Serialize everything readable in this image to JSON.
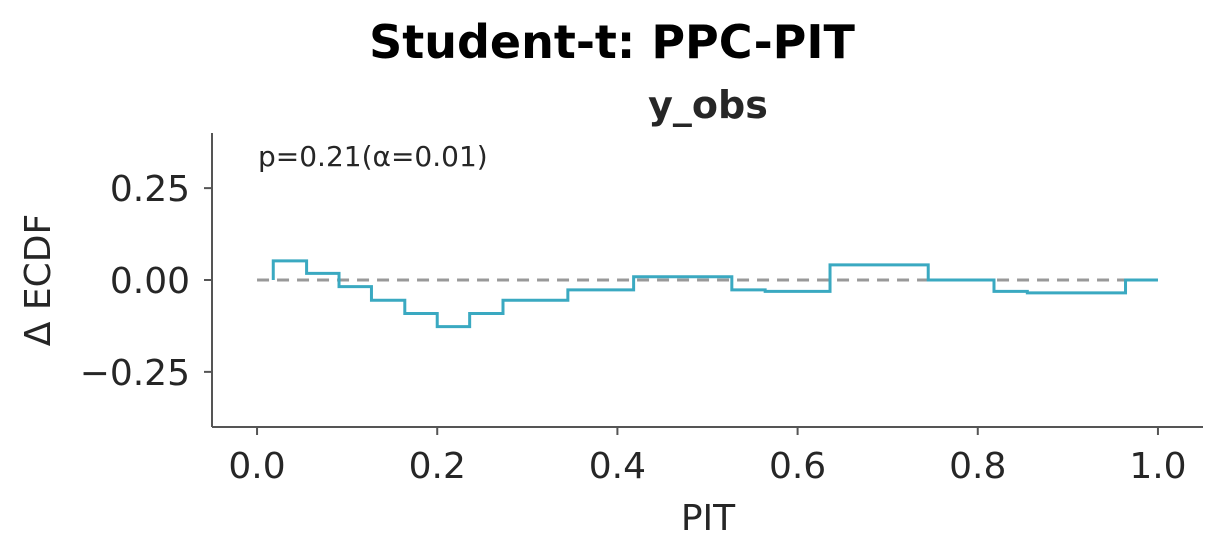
{
  "chart_data": {
    "type": "line",
    "title": "Student-t: PPC-PIT",
    "subtitle": "y_obs",
    "xlabel": "PIT",
    "ylabel": "Δ ECDF",
    "annotation": "p=0.21(α=0.01)",
    "xlim": [
      -0.05,
      1.05
    ],
    "ylim": [
      -0.4,
      0.4
    ],
    "xticks": [
      0.0,
      0.2,
      0.4,
      0.6,
      0.8,
      1.0
    ],
    "xtick_labels": [
      "0.0",
      "0.2",
      "0.4",
      "0.6",
      "0.8",
      "1.0"
    ],
    "yticks": [
      0.25,
      0.0,
      -0.25
    ],
    "ytick_labels": [
      "0.25",
      "0.00",
      "−0.25"
    ],
    "grid": false,
    "reference_line": {
      "y": 0.0,
      "style": "dashed",
      "color": "#999999"
    },
    "series": [
      {
        "step": "post",
        "color": "#3aa9c1",
        "x": [
          0.018,
          0.055,
          0.091,
          0.127,
          0.164,
          0.2,
          0.236,
          0.273,
          0.345,
          0.418,
          0.527,
          0.564,
          0.636,
          0.745,
          0.818,
          0.855,
          0.964,
          1.0
        ],
        "y": [
          0.052,
          0.018,
          -0.018,
          -0.055,
          -0.091,
          -0.127,
          -0.091,
          -0.055,
          -0.027,
          0.009,
          -0.027,
          -0.031,
          0.041,
          0.0,
          -0.031,
          -0.035,
          0.0,
          0.0
        ]
      }
    ]
  }
}
